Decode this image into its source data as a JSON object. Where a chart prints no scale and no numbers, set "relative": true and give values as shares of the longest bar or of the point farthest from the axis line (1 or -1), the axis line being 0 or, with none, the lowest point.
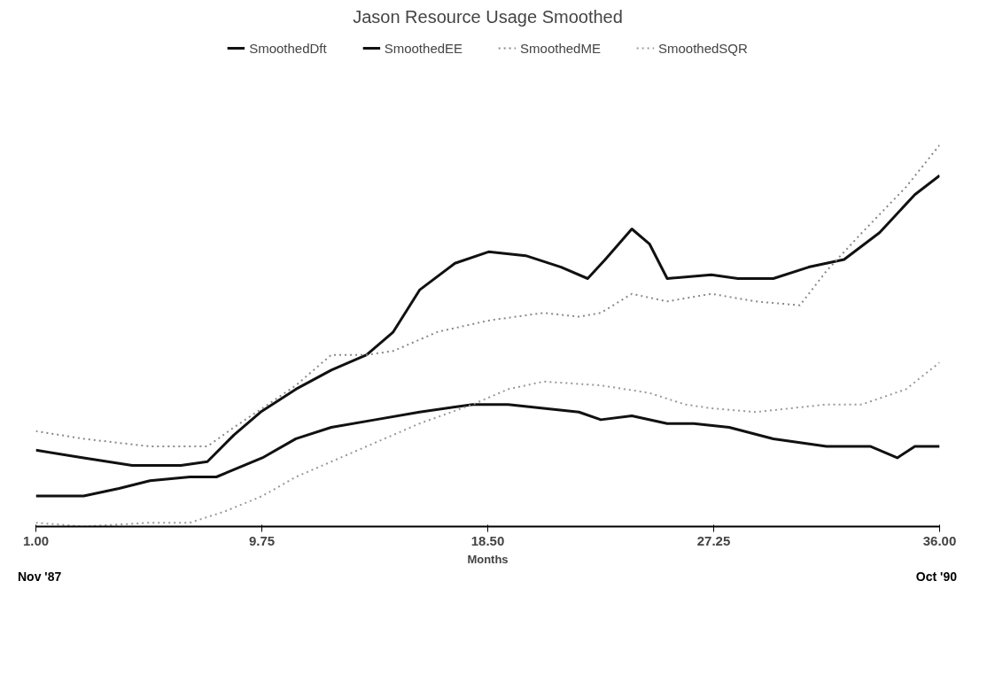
{
  "chart_data": {
    "type": "line",
    "title": "Jason Resource Usage Smoothed",
    "xlabel": "Months",
    "relative": true,
    "xlim": [
      1,
      36
    ],
    "xticks": [
      {
        "value": 1,
        "label": "1.00"
      },
      9.75,
      {
        "value": 18.5,
        "label": "18.50"
      },
      27.25,
      {
        "value": 36,
        "label": "36.00"
      }
    ],
    "tick_labels": "x",
    "grid": false,
    "legend": "top",
    "annotations": [
      "Nov '87",
      "Oct '90"
    ],
    "series": [
      {
        "name": "SmoothedDft",
        "color": "#111111",
        "line_style": "solid",
        "x": [
          1.0,
          2.85,
          4.73,
          6.62,
          7.64,
          8.67,
          9.7,
          11.07,
          12.44,
          13.81,
          14.84,
          15.86,
          17.23,
          18.53,
          19.97,
          21.34,
          22.37,
          23.05,
          24.08,
          24.77,
          25.45,
          27.16,
          28.19,
          29.56,
          30.93,
          32.3,
          33.67,
          35.04,
          36.0
        ],
        "values": [
          0.2,
          0.18,
          0.16,
          0.16,
          0.17,
          0.24,
          0.3,
          0.36,
          0.41,
          0.45,
          0.51,
          0.62,
          0.69,
          0.72,
          0.71,
          0.68,
          0.65,
          0.7,
          0.78,
          0.74,
          0.65,
          0.66,
          0.65,
          0.65,
          0.68,
          0.7,
          0.77,
          0.87,
          0.92
        ]
      },
      {
        "name": "SmoothedEE",
        "color": "#111111",
        "line_style": "solid",
        "x": [
          1.0,
          2.85,
          4.22,
          5.42,
          6.96,
          7.99,
          9.77,
          11.07,
          12.44,
          14.15,
          15.86,
          17.92,
          19.29,
          20.66,
          22.03,
          22.88,
          24.08,
          25.45,
          26.48,
          27.85,
          29.56,
          31.62,
          33.33,
          34.36,
          35.04,
          36.0
        ],
        "values": [
          0.08,
          0.08,
          0.1,
          0.12,
          0.13,
          0.13,
          0.18,
          0.23,
          0.26,
          0.28,
          0.3,
          0.32,
          0.32,
          0.31,
          0.3,
          0.28,
          0.29,
          0.27,
          0.27,
          0.26,
          0.23,
          0.21,
          0.21,
          0.18,
          0.21,
          0.21
        ]
      },
      {
        "name": "SmoothedME",
        "color": "#888888",
        "line_style": "dotted",
        "x": [
          1.0,
          2.85,
          5.42,
          7.64,
          8.67,
          9.77,
          11.07,
          12.44,
          13.81,
          14.84,
          16.55,
          18.53,
          20.66,
          22.03,
          22.88,
          24.08,
          25.45,
          27.16,
          28.88,
          30.59,
          31.62,
          32.99,
          34.7,
          36.0
        ],
        "values": [
          0.25,
          0.23,
          0.21,
          0.21,
          0.26,
          0.31,
          0.37,
          0.45,
          0.45,
          0.46,
          0.51,
          0.54,
          0.56,
          0.55,
          0.56,
          0.61,
          0.59,
          0.61,
          0.59,
          0.58,
          0.67,
          0.77,
          0.89,
          1.0
        ]
      },
      {
        "name": "SmoothedSQR",
        "color": "#999999",
        "line_style": "dotted",
        "x": [
          1.0,
          2.85,
          5.42,
          6.96,
          8.33,
          9.77,
          11.07,
          12.44,
          14.15,
          15.86,
          17.92,
          19.29,
          20.66,
          22.88,
          24.77,
          26.14,
          27.16,
          28.88,
          31.62,
          32.99,
          34.7,
          36.0
        ],
        "values": [
          0.01,
          0.0,
          0.01,
          0.01,
          0.04,
          0.08,
          0.13,
          0.17,
          0.22,
          0.27,
          0.32,
          0.36,
          0.38,
          0.37,
          0.35,
          0.32,
          0.31,
          0.3,
          0.32,
          0.32,
          0.36,
          0.43
        ]
      }
    ]
  }
}
